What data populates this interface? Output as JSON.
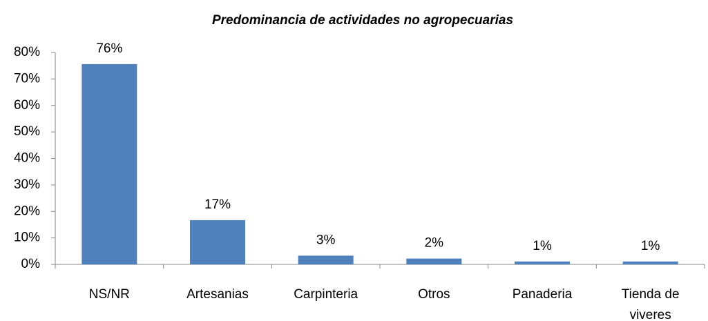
{
  "chart_data": {
    "type": "bar",
    "title": "Predominancia de actividades no agropecuarias",
    "categories": [
      "NS/NR",
      "Artesanias",
      "Carpinteria",
      "Otros",
      "Panaderia",
      "Tienda de viveres"
    ],
    "values": [
      75.6,
      16.7,
      3.3,
      2.2,
      1.1,
      1.1
    ],
    "value_labels": [
      "76%",
      "17%",
      "3%",
      "2%",
      "1%",
      "1%"
    ],
    "color": "#4f81bd",
    "ylim": [
      0,
      80
    ],
    "yticks": [
      {
        "value": 0,
        "label": "0%"
      },
      {
        "value": 10,
        "label": "10%"
      },
      {
        "value": 20,
        "label": "20%"
      },
      {
        "value": 30,
        "label": "30%"
      },
      {
        "value": 40,
        "label": "40%"
      },
      {
        "value": 50,
        "label": "50%"
      },
      {
        "value": 60,
        "label": "60%"
      },
      {
        "value": 70,
        "label": "70%"
      },
      {
        "value": 80,
        "label": "80%"
      }
    ]
  }
}
